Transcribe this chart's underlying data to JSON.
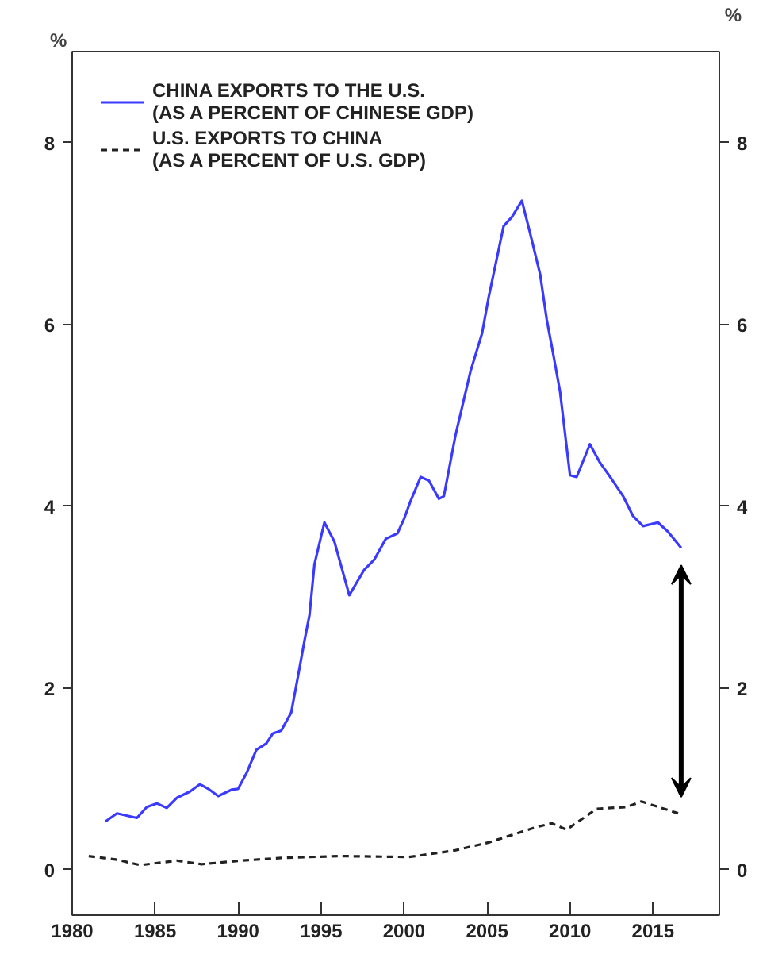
{
  "chart_data": {
    "type": "line",
    "ylabel": "%",
    "y2label": "%",
    "xlim": [
      1980,
      2019
    ],
    "xticks": [
      1980,
      1985,
      1990,
      1995,
      2000,
      2005,
      2010,
      2015
    ],
    "ylim": [
      -0.5,
      9
    ],
    "yticks": [
      0,
      2,
      4,
      6,
      8
    ],
    "y2lim": [
      -0.5,
      9
    ],
    "y2ticks": [
      0,
      2,
      4,
      6,
      8
    ],
    "grid": false,
    "legend": "top left",
    "marker": "none",
    "series": [
      {
        "name": "CHINA EXPORTS TO THE U.S.\n(AS A PERCENT OF CHINESE GDP)",
        "color": "#3a3aff",
        "line_style": "solid",
        "x": [
          1982.0,
          1982.7,
          1983.9,
          1984.5,
          1985.1,
          1985.7,
          1986.3,
          1987.1,
          1987.7,
          1988.2,
          1988.8,
          1989.6,
          1990.0,
          1990.5,
          1991.1,
          1991.7,
          1992.1,
          1992.6,
          1993.2,
          1993.6,
          1994.0,
          1994.3,
          1994.6,
          1995.2,
          1995.8,
          1996.7,
          1997.6,
          1998.2,
          1998.9,
          1999.6,
          2000.0,
          2000.4,
          2001.0,
          2001.5,
          2002.1,
          2002.4,
          2003.1,
          2004.0,
          2004.7,
          2005.1,
          2006.0,
          2006.5,
          2007.1,
          2007.6,
          2008.2,
          2008.6,
          2008.9,
          2009.4,
          2010.0,
          2010.4,
          2011.2,
          2011.8,
          2012.5,
          2013.2,
          2013.8,
          2014.4,
          2015.3,
          2015.9,
          2016.7
        ],
        "values": [
          0.53,
          0.62,
          0.57,
          0.69,
          0.73,
          0.68,
          0.79,
          0.86,
          0.94,
          0.89,
          0.81,
          0.88,
          0.89,
          1.06,
          1.32,
          1.39,
          1.5,
          1.53,
          1.73,
          2.12,
          2.52,
          2.8,
          3.36,
          3.82,
          3.61,
          3.02,
          3.3,
          3.41,
          3.64,
          3.7,
          3.86,
          4.06,
          4.32,
          4.28,
          4.08,
          4.11,
          4.78,
          5.48,
          5.9,
          6.3,
          7.08,
          7.18,
          7.36,
          7.0,
          6.55,
          6.05,
          5.76,
          5.26,
          4.34,
          4.32,
          4.68,
          4.48,
          4.3,
          4.11,
          3.89,
          3.78,
          3.82,
          3.72,
          3.54
        ]
      },
      {
        "name": "U.S. EXPORTS TO CHINA\n(AS A PERCENT OF U.S. GDP)",
        "color": "#222222",
        "line_style": "dashed",
        "x": [
          1981.0,
          1982.7,
          1984.1,
          1986.3,
          1987.8,
          1990.2,
          1992.6,
          1996.1,
          2000.3,
          2003.0,
          2005.1,
          2008.0,
          2008.9,
          2009.8,
          2011.6,
          2013.4,
          2014.3,
          2015.5,
          2016.7
        ],
        "values": [
          0.15,
          0.11,
          0.05,
          0.1,
          0.06,
          0.1,
          0.13,
          0.15,
          0.14,
          0.21,
          0.3,
          0.47,
          0.51,
          0.44,
          0.67,
          0.69,
          0.75,
          0.68,
          0.61
        ]
      }
    ]
  }
}
